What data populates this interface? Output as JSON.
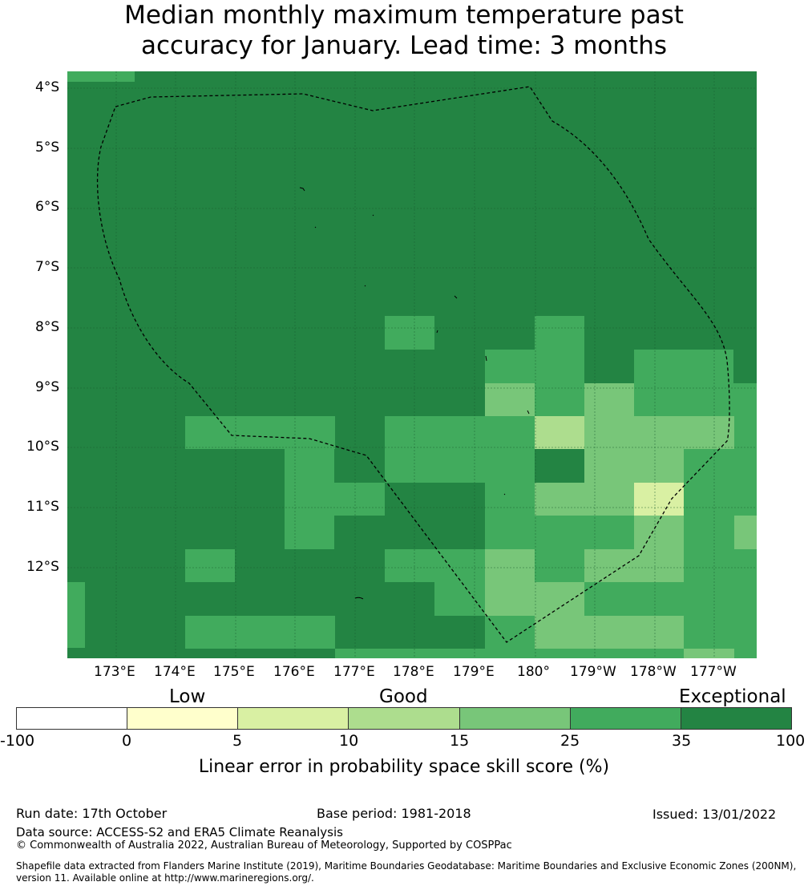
{
  "title_line1": "Median monthly maximum temperature past",
  "title_line2": "accuracy for January. Lead time: 3 months",
  "map": {
    "lat_labels": [
      "4°S",
      "5°S",
      "6°S",
      "7°S",
      "8°S",
      "9°S",
      "10°S",
      "11°S",
      "12°S"
    ],
    "lon_labels": [
      "173°E",
      "174°E",
      "175°E",
      "176°E",
      "177°E",
      "178°E",
      "179°E",
      "180°",
      "179°W",
      "178°W",
      "177°W"
    ]
  },
  "colorbar": {
    "categories": [
      "Low",
      "Good",
      "Exceptional"
    ],
    "ticks": [
      "-100",
      "0",
      "5",
      "10",
      "15",
      "25",
      "35",
      "100"
    ],
    "colors": [
      "#ffffff",
      "#ffffcc",
      "#d9f0a3",
      "#addd8e",
      "#78c679",
      "#41ab5d",
      "#238443"
    ],
    "label": "Linear error in probability space skill score (%)"
  },
  "footer": {
    "run_date": "Run date: 17th October",
    "base_period": "Base period: 1981-2018",
    "issued": "Issued: 13/01/2022",
    "data_source": "Data source: ACCESS-S2 and ERA5 Climate Reanalysis",
    "copyright": "© Commonwealth of Australia 2022, Australian Bureau of Meteorology, Supported by COSPPac",
    "shapefile": "Shapefile data extracted from Flanders Marine Institute (2019), Maritime Boundaries Geodatabase: Maritime Boundaries and Exclusive Economic Zones (200NM), version 11. Available online at http://www.marineregions.org/."
  }
}
